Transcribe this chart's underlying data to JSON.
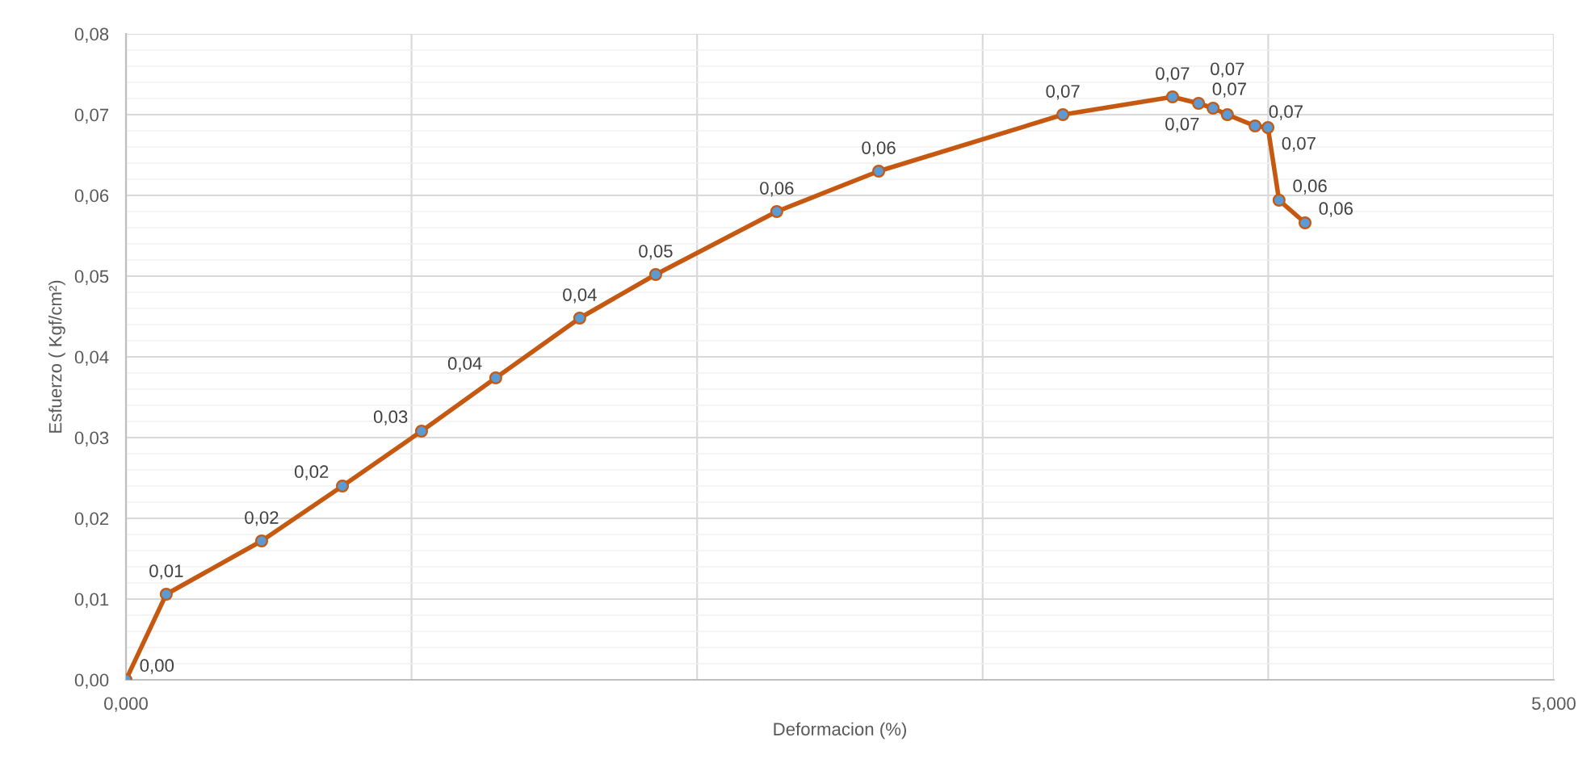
{
  "chart_data": {
    "type": "line",
    "xlabel": "Deformacion (%)",
    "ylabel": "Esfuerzo ( Kgf/cm²)",
    "x": [
      0,
      0.141,
      0.475,
      0.758,
      1.035,
      1.295,
      1.589,
      1.855,
      2.279,
      2.636,
      3.281,
      3.665,
      3.756,
      3.807,
      3.857,
      3.954,
      3.999,
      4.038,
      4.129
    ],
    "series": [
      {
        "color": "#c65911",
        "colors": [
          "#5b9bd5",
          "#5b9bd5",
          "#5b9bd5",
          "#5b9bd5",
          "#5b9bd5",
          "#5b9bd5",
          "#5b9bd5",
          "#5b9bd5",
          "#5b9bd5",
          "#5b9bd5",
          "#5b9bd5",
          "#5b9bd5",
          "#5b9bd5",
          "#5b9bd5",
          "#5b9bd5",
          "#5b9bd5",
          "#5b9bd5",
          "#5b9bd5",
          "#5b9bd5"
        ],
        "values": [
          0,
          0.0106,
          0.0172,
          0.024,
          0.0308,
          0.0374,
          0.0448,
          0.0502,
          0.058,
          0.063,
          0.07,
          0.0722,
          0.0714,
          0.0708,
          0.07,
          0.0686,
          0.0684,
          0.0594,
          0.0566
        ],
        "value_labels": [
          "0,00",
          "0,01",
          "0,02",
          "0,02",
          "0,03",
          "0,04",
          "0,04",
          "0,05",
          "0,06",
          "0,06",
          "0,07",
          "0,07",
          "0,07",
          "0,07",
          "0,07",
          "0,07",
          "0,07",
          "0,06",
          "0,06"
        ]
      }
    ],
    "xlim": [
      0,
      5
    ],
    "xticks": [
      {
        "value": 0,
        "label": "0,000"
      },
      {
        "value": 1,
        "label": null
      },
      {
        "value": 2,
        "label": null
      },
      {
        "value": 3,
        "label": null
      },
      {
        "value": 4,
        "label": null
      },
      {
        "value": 5,
        "label": "5,000"
      }
    ],
    "ylim": [
      0,
      0.08
    ],
    "yticks": [
      {
        "value": 0,
        "label": "0,00"
      },
      {
        "value": 0.01,
        "label": "0,01"
      },
      {
        "value": 0.02,
        "label": "0,02"
      },
      {
        "value": 0.03,
        "label": "0,03"
      },
      {
        "value": 0.04,
        "label": "0,04"
      },
      {
        "value": 0.05,
        "label": "0,05"
      },
      {
        "value": 0.06,
        "label": "0,06"
      },
      {
        "value": 0.07,
        "label": "0,07"
      },
      {
        "value": 0.08,
        "label": "0,08"
      }
    ],
    "grid": true,
    "marker": "circle",
    "line_style": "solid",
    "legend": false
  }
}
